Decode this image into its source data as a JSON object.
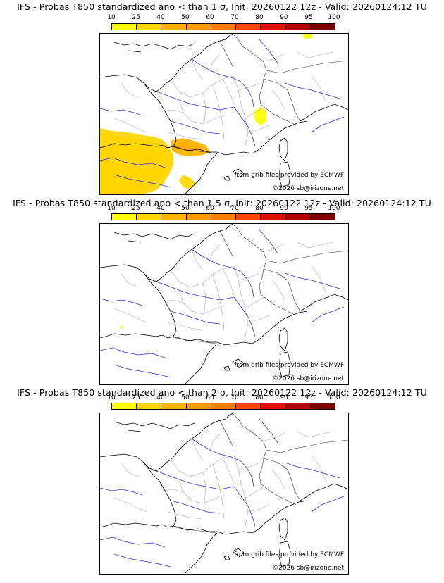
{
  "panels": [
    {
      "title": "IFS - Probas T850  standardized ano < than 1 σ, Init: 20260122 12z - Valid: 20260124:12 TU",
      "credit_source": "from grib files provided by ECMWF",
      "credit_copyright": "©2026 sb@irizone.net"
    },
    {
      "title": "IFS - Probas T850  standardized ano < than 1.5 σ, Init: 20260122 12z - Valid: 20260124:12 TU",
      "credit_source": "from grib files provided by ECMWF",
      "credit_copyright": "©2026 sb@irizone.net"
    },
    {
      "title": "IFS - Probas T850  standardized ano < than 2 σ, Init: 20260122 12z - Valid: 20260124:12 TU",
      "credit_source": "from grib files provided by ECMWF",
      "credit_copyright": "©2026 sb@irizone.net"
    }
  ],
  "colorbar": {
    "labels": [
      "10",
      "25",
      "40",
      "50",
      "60",
      "70",
      "80",
      "90",
      "95",
      "100"
    ],
    "colors": [
      "#ffff00",
      "#ffd700",
      "#ffb300",
      "#ff9a00",
      "#ff7f00",
      "#ff4500",
      "#e01000",
      "#b00000",
      "#800000"
    ]
  }
}
